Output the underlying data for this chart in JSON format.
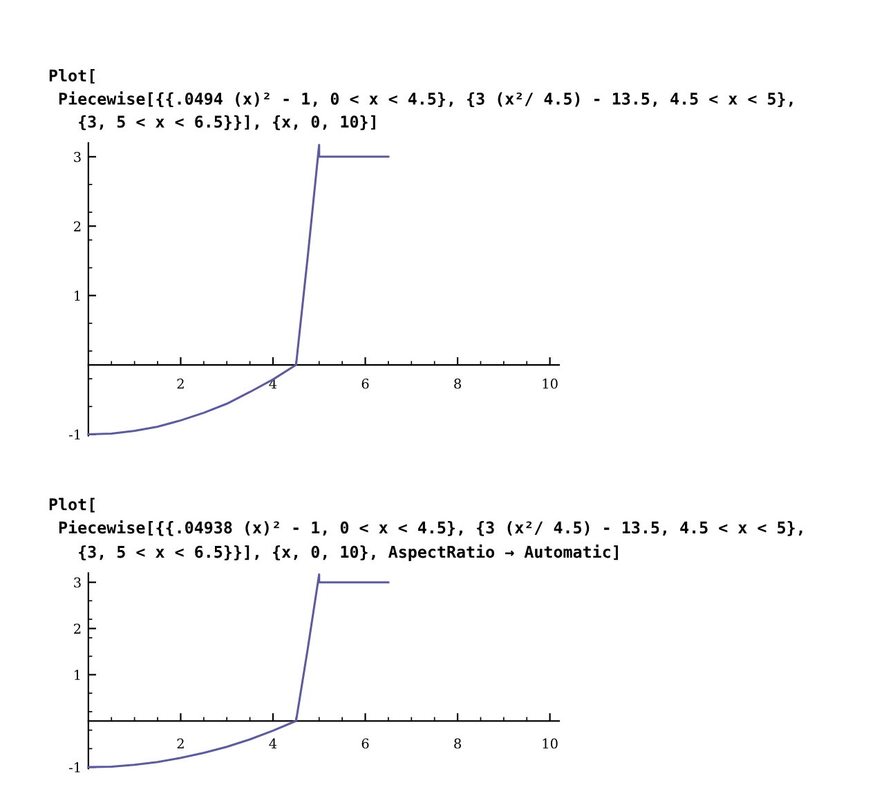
{
  "chart_data": [
    {
      "type": "line",
      "title": "Plot[\n Piecewise[{{.0494 (x)² - 1, 0 < x < 4.5}, {3 (x²/ 4.5) - 13.5, 4.5 < x < 5},\n   {3, 5 < x < 6.5}}], {x, 0, 10}]",
      "x": [
        0,
        0.5,
        1,
        1.5,
        2,
        2.5,
        3,
        3.5,
        4,
        4.5,
        4.75,
        5,
        5,
        6.5
      ],
      "series": [
        {
          "color": "#5c5c9c",
          "values": [
            -1,
            -0.99,
            -0.95,
            -0.89,
            -0.8,
            -0.69,
            -0.56,
            -0.39,
            -0.21,
            0,
            1.54,
            3.17,
            3,
            3
          ]
        }
      ],
      "xlim": [
        0,
        10.2
      ],
      "ylim": [
        -1.02,
        3.2
      ],
      "xticks": [
        2,
        4,
        6,
        8,
        10
      ],
      "yticks": [
        -1,
        1,
        2,
        3
      ],
      "grid": false,
      "legend": false,
      "marker": "none",
      "line_style": "solid"
    },
    {
      "type": "line",
      "title": "Plot[\n Piecewise[{{.04938 (x)² - 1, 0 < x < 4.5}, {3 (x²/ 4.5) - 13.5, 4.5 < x < 5},\n   {3, 5 < x < 6.5}}], {x, 0, 10}, AspectRatio → Automatic]",
      "x": [
        0,
        0.5,
        1,
        1.5,
        2,
        2.5,
        3,
        3.5,
        4,
        4.5,
        4.75,
        5,
        5,
        6.5
      ],
      "series": [
        {
          "color": "#5c5c9c",
          "values": [
            -1,
            -0.99,
            -0.95,
            -0.89,
            -0.8,
            -0.69,
            -0.56,
            -0.4,
            -0.21,
            0,
            1.54,
            3.17,
            3,
            3
          ]
        }
      ],
      "xlim": [
        0,
        10.2
      ],
      "ylim": [
        -1.03,
        3.2
      ],
      "xticks": [
        2,
        4,
        6,
        8,
        10
      ],
      "yticks": [
        -1,
        1,
        2,
        3
      ],
      "grid": false,
      "legend": false,
      "marker": "none",
      "line_style": "solid"
    }
  ]
}
